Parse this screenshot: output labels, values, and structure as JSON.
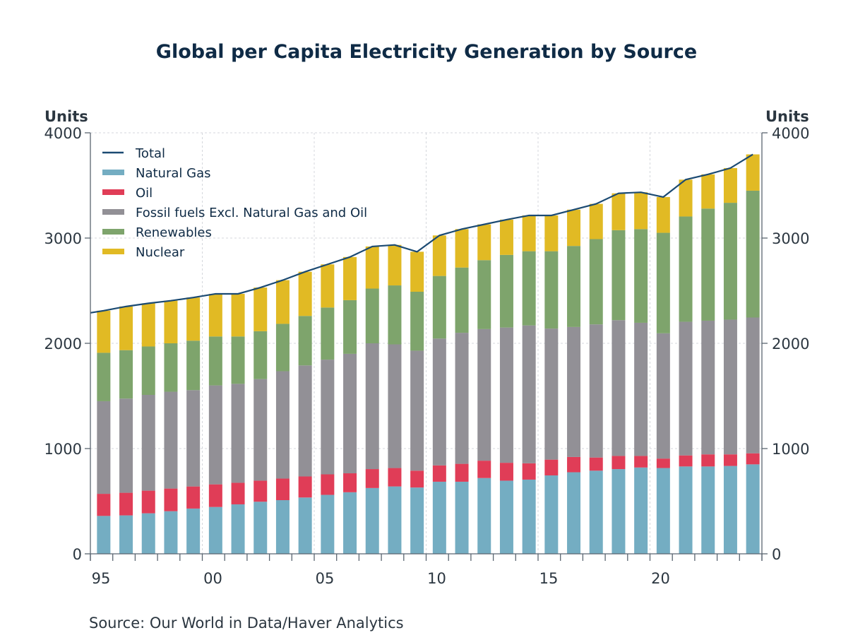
{
  "chart_data": {
    "type": "bar",
    "stacked": true,
    "title": "Global per Capita Electricity Generation by Source",
    "ylabel_left": "Units",
    "ylabel_right": "Units",
    "ylim": [
      0,
      4000
    ],
    "yticks": [
      0,
      1000,
      2000,
      3000,
      4000
    ],
    "grid": true,
    "legend_position": "top-left",
    "xtick_labels": [
      {
        "year": 1995,
        "label": "95"
      },
      {
        "year": 2000,
        "label": "00"
      },
      {
        "year": 2005,
        "label": "05"
      },
      {
        "year": 2010,
        "label": "10"
      },
      {
        "year": 2015,
        "label": "15"
      },
      {
        "year": 2020,
        "label": "20"
      }
    ],
    "categories": [
      1995,
      1996,
      1997,
      1998,
      1999,
      2000,
      2001,
      2002,
      2003,
      2004,
      2005,
      2006,
      2007,
      2008,
      2009,
      2010,
      2011,
      2012,
      2013,
      2014,
      2015,
      2016,
      2017,
      2018,
      2019,
      2020,
      2021,
      2022,
      2023,
      2024
    ],
    "series": [
      {
        "name": "Natural Gas",
        "color": "#74adc2",
        "values": [
          360,
          365,
          385,
          405,
          430,
          445,
          470,
          495,
          510,
          535,
          560,
          585,
          625,
          640,
          630,
          685,
          685,
          720,
          695,
          705,
          745,
          775,
          790,
          805,
          820,
          815,
          830,
          830,
          835,
          850
        ]
      },
      {
        "name": "Oil",
        "color": "#e03d57",
        "values": [
          210,
          215,
          215,
          215,
          210,
          215,
          205,
          200,
          205,
          200,
          195,
          180,
          180,
          175,
          160,
          155,
          170,
          165,
          170,
          155,
          150,
          145,
          125,
          125,
          110,
          90,
          105,
          115,
          110,
          105
        ]
      },
      {
        "name": "Fossil fuels Excl. Natural Gas and Oil",
        "color": "#929096",
        "values": [
          880,
          895,
          910,
          920,
          915,
          940,
          940,
          965,
          1020,
          1055,
          1090,
          1135,
          1195,
          1175,
          1140,
          1205,
          1245,
          1250,
          1285,
          1310,
          1245,
          1235,
          1265,
          1290,
          1265,
          1190,
          1270,
          1270,
          1280,
          1290
        ]
      },
      {
        "name": "Renewables",
        "color": "#7ea46c",
        "values": [
          460,
          460,
          460,
          460,
          470,
          465,
          450,
          455,
          450,
          470,
          495,
          510,
          520,
          560,
          560,
          595,
          620,
          655,
          690,
          705,
          735,
          770,
          810,
          855,
          890,
          955,
          1000,
          1065,
          1110,
          1205
        ]
      },
      {
        "name": "Nuclear",
        "color": "#e1ba24",
        "values": [
          400,
          415,
          410,
          405,
          410,
          405,
          405,
          415,
          415,
          420,
          410,
          410,
          400,
          385,
          380,
          385,
          365,
          340,
          335,
          340,
          340,
          345,
          335,
          350,
          350,
          340,
          350,
          325,
          330,
          345
        ]
      }
    ],
    "line_series": {
      "name": "Total",
      "color": "#1b4a72",
      "values": [
        2310,
        2350,
        2380,
        2405,
        2435,
        2470,
        2470,
        2530,
        2600,
        2680,
        2750,
        2820,
        2920,
        2935,
        2870,
        3025,
        3085,
        3130,
        3175,
        3215,
        3215,
        3270,
        3325,
        3425,
        3435,
        3390,
        3555,
        3605,
        3665,
        3795
      ]
    },
    "legend": [
      {
        "label": "Total",
        "kind": "line",
        "color": "#1b4a72"
      },
      {
        "label": "Natural Gas",
        "kind": "bar",
        "color": "#74adc2"
      },
      {
        "label": "Oil",
        "kind": "bar",
        "color": "#e03d57"
      },
      {
        "label": "Fossil fuels Excl. Natural Gas and Oil",
        "kind": "bar",
        "color": "#929096"
      },
      {
        "label": "Renewables",
        "kind": "bar",
        "color": "#7ea46c"
      },
      {
        "label": "Nuclear",
        "kind": "bar",
        "color": "#e1ba24"
      }
    ]
  },
  "source_text": "Source:  Our World in Data/Haver Analytics"
}
